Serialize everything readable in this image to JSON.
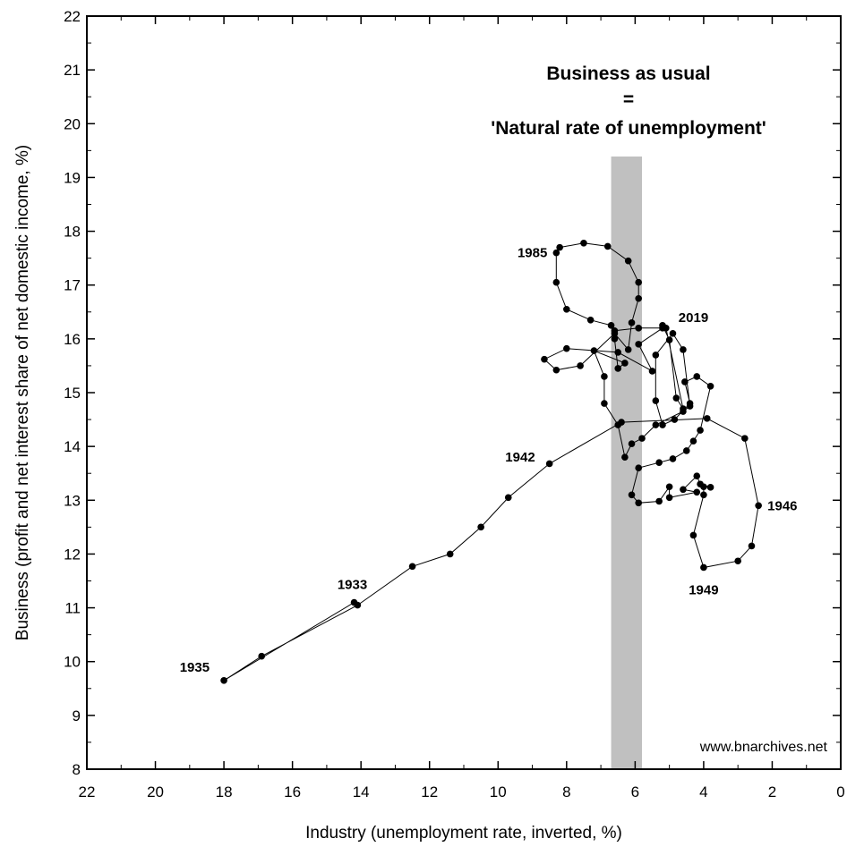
{
  "chart_data": {
    "type": "scatter",
    "xlabel": "Industry (unemployment rate, inverted, %)",
    "ylabel": "Business (profit and net interest share of net domestic income, %)",
    "xlim": [
      22,
      0
    ],
    "ylim": [
      8,
      22
    ],
    "x_inverted": true,
    "x_ticks": [
      22,
      20,
      18,
      16,
      14,
      12,
      10,
      8,
      6,
      4,
      2,
      0
    ],
    "y_ticks": [
      8,
      9,
      10,
      11,
      12,
      13,
      14,
      15,
      16,
      17,
      18,
      19,
      20,
      21,
      22
    ],
    "band": {
      "x_from": 6.7,
      "x_to": 5.8,
      "color": "#c0c0c0"
    },
    "annotation": {
      "lines": [
        "Business as usual",
        "=",
        "'Natural rate of unemployment'"
      ]
    },
    "watermark": "www.bnarchives.net",
    "year_labels": [
      {
        "text": "1935",
        "x": 18.0,
        "y": 9.65
      },
      {
        "text": "1933",
        "x": 14.2,
        "y": 11.1
      },
      {
        "text": "1942",
        "x": 8.5,
        "y": 13.7
      },
      {
        "text": "1985",
        "x": 8.3,
        "y": 17.6
      },
      {
        "text": "2019",
        "x": 5.1,
        "y": 16.25
      },
      {
        "text": "1946",
        "x": 2.4,
        "y": 12.9
      },
      {
        "text": "1949",
        "x": 4.0,
        "y": 11.75
      }
    ],
    "series": [
      {
        "points": [
          [
            14.2,
            11.1
          ],
          [
            18.0,
            9.65
          ],
          [
            16.9,
            10.1
          ],
          [
            14.1,
            11.05
          ],
          [
            12.5,
            11.77
          ],
          [
            11.4,
            12.0
          ],
          [
            10.5,
            12.5
          ],
          [
            9.7,
            13.05
          ],
          [
            8.5,
            13.68
          ],
          [
            6.4,
            14.45
          ],
          [
            3.9,
            14.52
          ],
          [
            2.8,
            14.15
          ],
          [
            2.4,
            12.9
          ],
          [
            2.6,
            12.15
          ],
          [
            3.0,
            11.87
          ],
          [
            4.0,
            11.75
          ],
          [
            4.3,
            12.35
          ],
          [
            4.0,
            13.1
          ],
          [
            4.0,
            13.25
          ],
          [
            3.8,
            13.24
          ],
          [
            4.1,
            13.3
          ],
          [
            4.2,
            13.45
          ],
          [
            4.6,
            13.2
          ],
          [
            4.2,
            13.15
          ],
          [
            5.0,
            13.05
          ],
          [
            5.0,
            13.25
          ],
          [
            5.3,
            12.98
          ],
          [
            5.9,
            12.95
          ],
          [
            6.1,
            13.1
          ],
          [
            5.9,
            13.6
          ],
          [
            5.3,
            13.7
          ],
          [
            4.9,
            13.77
          ],
          [
            4.5,
            13.92
          ],
          [
            4.3,
            14.1
          ],
          [
            4.1,
            14.3
          ],
          [
            3.8,
            15.12
          ],
          [
            4.2,
            15.3
          ],
          [
            4.55,
            15.2
          ],
          [
            4.4,
            14.8
          ],
          [
            4.85,
            14.5
          ],
          [
            5.2,
            14.4
          ],
          [
            5.4,
            14.85
          ],
          [
            5.4,
            15.7
          ],
          [
            4.9,
            16.1
          ],
          [
            4.6,
            15.8
          ],
          [
            4.4,
            14.75
          ],
          [
            4.6,
            14.65
          ],
          [
            5.4,
            14.4
          ],
          [
            5.8,
            14.15
          ],
          [
            6.1,
            14.05
          ],
          [
            6.3,
            13.8
          ],
          [
            6.5,
            14.4
          ],
          [
            6.9,
            14.8
          ],
          [
            6.9,
            15.3
          ],
          [
            7.2,
            15.78
          ],
          [
            6.3,
            15.55
          ],
          [
            6.5,
            15.45
          ],
          [
            6.6,
            16.0
          ],
          [
            6.7,
            16.25
          ],
          [
            7.3,
            16.35
          ],
          [
            8.0,
            16.55
          ],
          [
            8.3,
            17.05
          ],
          [
            8.3,
            17.6
          ],
          [
            8.2,
            17.7
          ],
          [
            7.5,
            17.78
          ],
          [
            6.8,
            17.72
          ],
          [
            6.2,
            17.45
          ],
          [
            5.9,
            17.05
          ],
          [
            5.9,
            16.75
          ],
          [
            6.1,
            16.3
          ],
          [
            6.2,
            15.8
          ],
          [
            6.6,
            16.1
          ],
          [
            7.6,
            15.5
          ],
          [
            8.3,
            15.42
          ],
          [
            8.65,
            15.62
          ],
          [
            8.0,
            15.82
          ],
          [
            6.5,
            15.75
          ],
          [
            5.5,
            15.4
          ],
          [
            5.9,
            15.9
          ],
          [
            5.2,
            16.2
          ],
          [
            5.2,
            16.25
          ],
          [
            5.0,
            15.98
          ],
          [
            4.8,
            14.9
          ],
          [
            4.6,
            14.7
          ],
          [
            5.1,
            16.2
          ],
          [
            5.9,
            16.2
          ],
          [
            6.6,
            16.15
          ]
        ]
      }
    ]
  }
}
